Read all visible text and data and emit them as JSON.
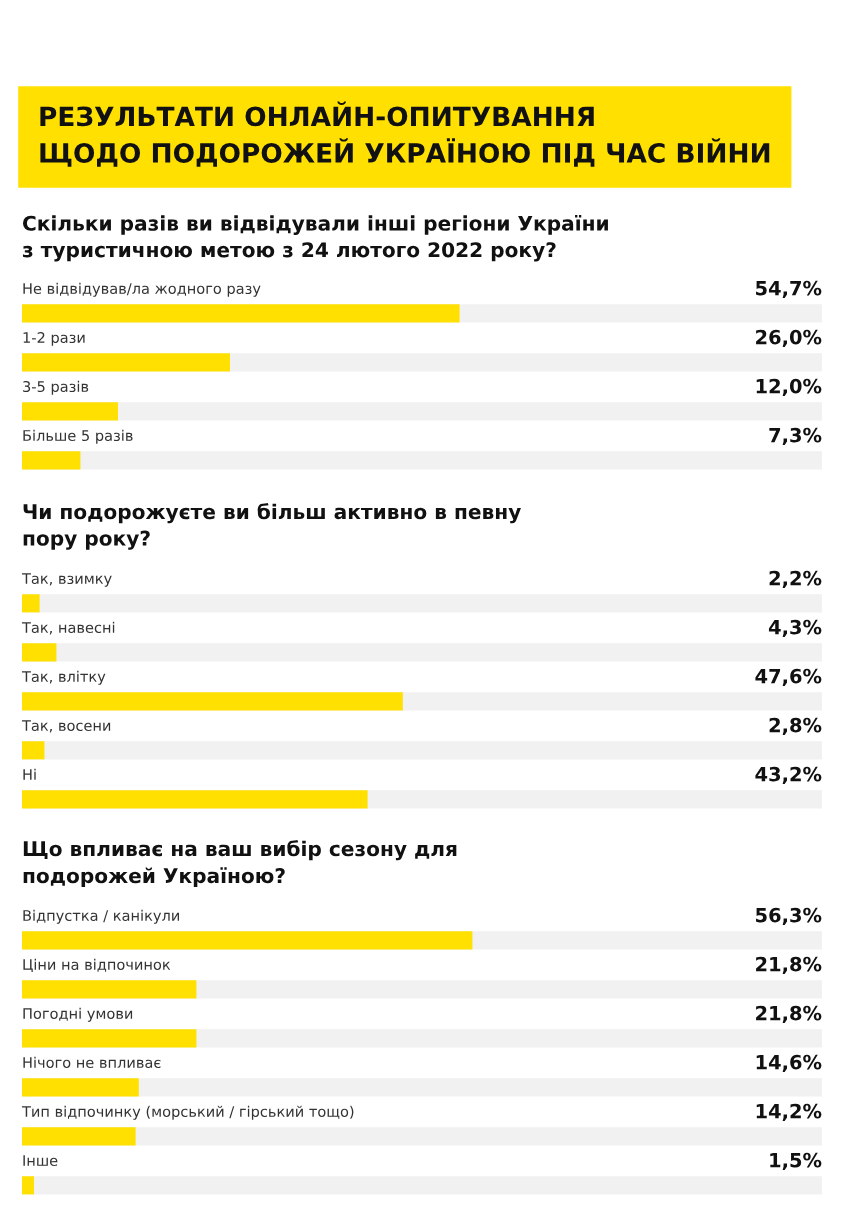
{
  "chart_data": [
    {
      "type": "bar",
      "orientation": "horizontal",
      "title": "РЕЗУЛЬТАТИ ОНЛАЙН-ОПИТУВАННЯ\nЩОДО ПОДОРОЖЕЙ УКРАЇНОЮ ПІД ЧАС ВІЙНИ",
      "subtitle": "Скільки разів ви відвідували інші регіони України\nз туристичною метою з 24 лютого 2022 року?",
      "categories": [
        "Не відвідував/ла жодного разу",
        "1-2 рази",
        "3-5 разів",
        "Більше 5 разів"
      ],
      "values": [
        54.7,
        26.0,
        12.0,
        7.3
      ],
      "value_labels": [
        "54,7%",
        "26,0%",
        "12,0%",
        "7,3%"
      ],
      "color": "#ffe000",
      "xlim": [
        0,
        100
      ]
    },
    {
      "type": "bar",
      "orientation": "horizontal",
      "title": "Чи подорожуєте ви більш активно в певну\nпору року?",
      "categories": [
        "Так, взимку",
        "Так, навесні",
        "Так, влітку",
        "Так, восени",
        "Ні"
      ],
      "values": [
        2.2,
        4.3,
        47.6,
        2.8,
        43.2
      ],
      "value_labels": [
        "2,2%",
        "4,3%",
        "47,6%",
        "2,8%",
        "43,2%"
      ],
      "color": "#ffe000",
      "xlim": [
        0,
        100
      ]
    },
    {
      "type": "bar",
      "orientation": "horizontal",
      "title": "Що впливає на ваш вибір сезону для\nподорожей Україною?",
      "categories": [
        "Відпустка / канікули",
        "Ціни на відпочинок",
        "Погодні умови",
        "Нічого не впливає",
        "Тип відпочинку (морський / гірський тощо)",
        "Інше"
      ],
      "values": [
        56.3,
        21.8,
        21.8,
        14.6,
        14.2,
        1.5
      ],
      "value_labels": [
        "56,3%",
        "21,8%",
        "21,8%",
        "14,6%",
        "14,2%",
        "1,5%"
      ],
      "color": "#ffe000",
      "xlim": [
        0,
        100
      ]
    }
  ]
}
